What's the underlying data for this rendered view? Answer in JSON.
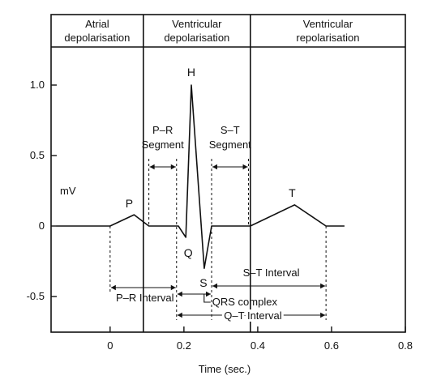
{
  "chart_data": {
    "type": "line",
    "xlabel": "Time (sec.)",
    "ylabel": "mV",
    "xlim": [
      -0.16,
      0.8
    ],
    "ylim": [
      -0.75,
      1.3
    ],
    "x_ticks": [
      {
        "value": 0,
        "label": "0"
      },
      {
        "value": 0.2,
        "label": "0.2"
      },
      {
        "value": 0.4,
        "label": "0.4"
      },
      {
        "value": 0.6,
        "label": "0.6"
      },
      {
        "value": 0.8,
        "label": "0.8"
      }
    ],
    "y_ticks": [
      {
        "value": 1.0,
        "label": "1.0"
      },
      {
        "value": 0.5,
        "label": "0.5"
      },
      {
        "value": 0,
        "label": "0"
      },
      {
        "value": -0.5,
        "label": "-0.5"
      }
    ],
    "grid": false,
    "phases": [
      {
        "line1": "Atrial",
        "line2": "depolarisation",
        "x_start": -0.16,
        "x_end": 0.09
      },
      {
        "line1": "Ventricular",
        "line2": "depolarisation",
        "x_start": 0.09,
        "x_end": 0.38
      },
      {
        "line1": "Ventricular",
        "line2": "repolarisation",
        "x_start": 0.38,
        "x_end": 0.8
      }
    ],
    "series": [
      {
        "x": [
          -0.145,
          0.0,
          0.065,
          0.105,
          0.185,
          0.205,
          0.22,
          0.255,
          0.275,
          0.38,
          0.5,
          0.585,
          0.635
        ],
        "y": [
          0,
          0,
          0.08,
          0,
          0,
          -0.08,
          1.0,
          -0.3,
          0,
          0,
          0.15,
          0,
          0
        ]
      }
    ],
    "wave_labels": [
      {
        "label": "P",
        "x": 0.065,
        "y": 0.08
      },
      {
        "label": "Q",
        "x": 0.205,
        "y": -0.08
      },
      {
        "label": "H",
        "x": 0.22,
        "y": 1.0
      },
      {
        "label": "S",
        "x": 0.255,
        "y": -0.3
      },
      {
        "label": "T",
        "x": 0.5,
        "y": 0.15
      }
    ],
    "annotations": [
      {
        "line1": "P–R",
        "line2": "Segment",
        "x_start": 0.105,
        "x_end": 0.18
      },
      {
        "line1": "S–T",
        "line2": "Segment",
        "x_start": 0.275,
        "x_end": 0.375
      },
      {
        "label": "S–T Interval",
        "x_start": 0.275,
        "x_end": 0.585
      },
      {
        "label": "P–R Interval",
        "x_start": 0.0,
        "x_end": 0.18
      },
      {
        "label": "QRS complex",
        "x_start": 0.18,
        "x_end": 0.275
      },
      {
        "label": "Q–T Interval",
        "x_start": 0.18,
        "x_end": 0.585
      }
    ]
  }
}
